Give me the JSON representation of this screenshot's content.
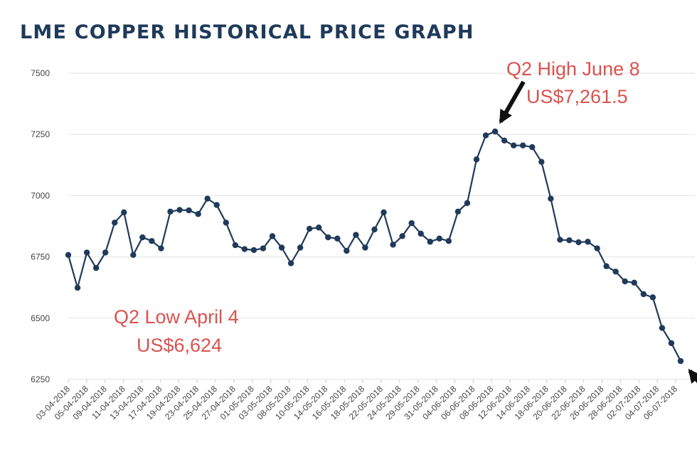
{
  "chart_data": {
    "type": "line",
    "title": "LME COPPER HISTORICAL PRICE GRAPH",
    "xlabel": "",
    "ylabel": "",
    "ylim": [
      6250,
      7500
    ],
    "yticks": [
      6250,
      6500,
      6750,
      7000,
      7250,
      7500
    ],
    "grid": true,
    "colors": {
      "series": "#1f3a5a",
      "annotation": "#d9534f",
      "arrow": "#111111"
    },
    "x_tick_labels": [
      "03-04-2018",
      "05-04-2018",
      "09-04-2018",
      "11-04-2018",
      "13-04-2018",
      "17-04-2018",
      "19-04-2018",
      "23-04-2018",
      "25-04-2018",
      "27-04-2018",
      "01-05-2018",
      "03-05-2018",
      "08-05-2018",
      "10-05-2018",
      "14-05-2018",
      "16-05-2018",
      "18-05-2018",
      "22-05-2018",
      "24-05-2018",
      "29-05-2018",
      "31-05-2018",
      "04-06-2018",
      "06-06-2018",
      "08-06-2018",
      "12-06-2018",
      "14-06-2018",
      "18-06-2018",
      "20-06-2018",
      "22-06-2018",
      "26-06-2018",
      "28-06-2018",
      "02-07-2018",
      "04-07-2018",
      "06-07-2018"
    ],
    "series": [
      {
        "values": [
          6758,
          6624,
          6768,
          6705,
          6768,
          6890,
          6932,
          6758,
          6830,
          6815,
          6785,
          6935,
          6942,
          6940,
          6925,
          6988,
          6962,
          6890,
          6798,
          6782,
          6778,
          6785,
          6835,
          6788,
          6724,
          6788,
          6865,
          6870,
          6830,
          6825,
          6775,
          6840,
          6788,
          6862,
          6932,
          6800,
          6835,
          6888,
          6845,
          6812,
          6825,
          6815,
          6935,
          6970,
          7148,
          7246,
          7262,
          7225,
          7205,
          7205,
          7198,
          7138,
          6988,
          6820,
          6818,
          6810,
          6812,
          6785,
          6712,
          6690,
          6650,
          6645,
          6598,
          6585,
          6460,
          6398,
          6325
        ]
      }
    ],
    "annotations": [
      {
        "line1": "Q2 Low April 4",
        "line2": "US$6,624"
      },
      {
        "line1": "Q2 High June 8",
        "line2": "US$7,261.5"
      }
    ]
  }
}
